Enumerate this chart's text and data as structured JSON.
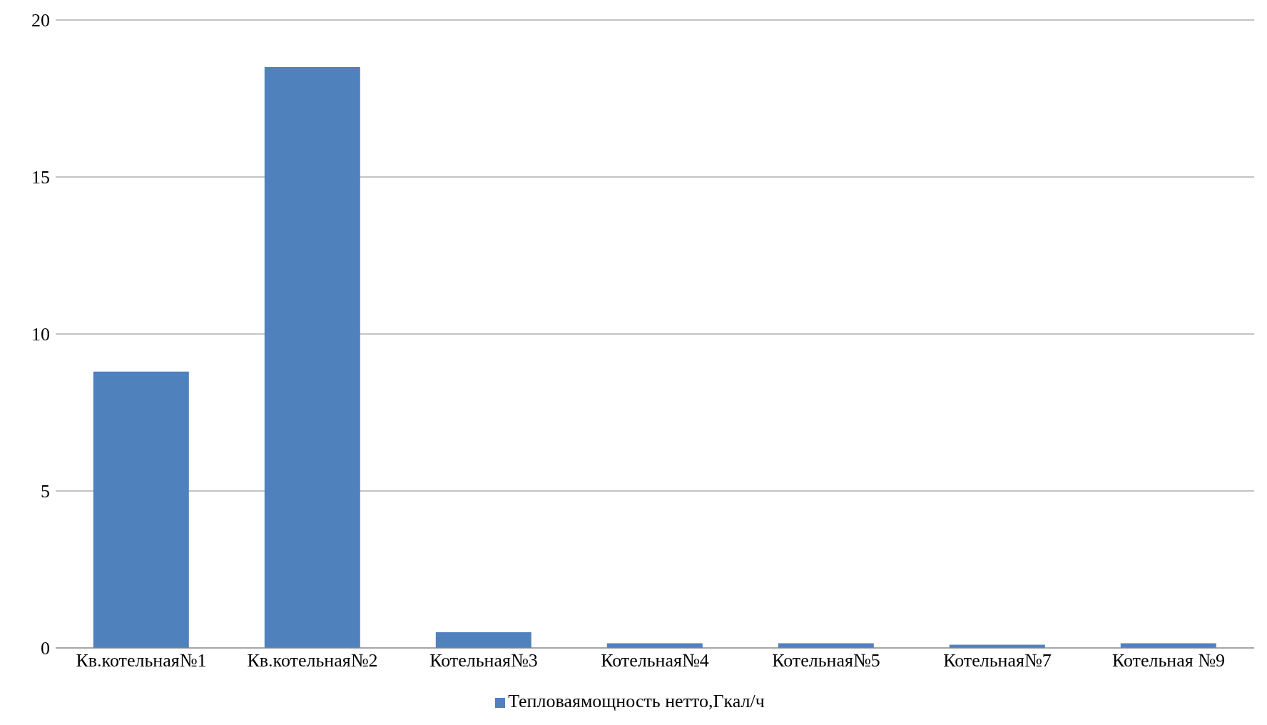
{
  "chart_data": {
    "type": "bar",
    "categories": [
      "Кв.котельная№1",
      "Кв.котельная№2",
      "Котельная№3",
      "Котельная№4",
      "Котельная№5",
      "Котельная№7",
      "Котельная №9"
    ],
    "series": [
      {
        "name": "Тепловаямощность нетто,Гкал/ч",
        "color": "#4f81bd",
        "values": [
          8.8,
          18.5,
          0.5,
          0.15,
          0.15,
          0.1,
          0.15
        ]
      }
    ],
    "ylim": [
      0,
      20
    ],
    "yticks": [
      0,
      5,
      10,
      15,
      20
    ],
    "grid": "y",
    "legend": "bottom"
  }
}
